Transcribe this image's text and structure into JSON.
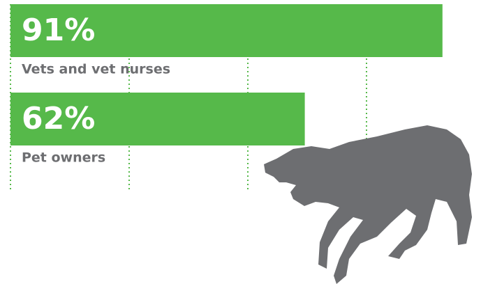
{
  "chart_data": {
    "type": "bar",
    "orientation": "horizontal",
    "categories": [
      "Vets and vet nurses",
      "Pet owners"
    ],
    "values": [
      91,
      62
    ],
    "value_labels": [
      "91%",
      "62%"
    ],
    "color": "#56b94a",
    "xlim": [
      0,
      100
    ],
    "xticks": [
      0,
      25,
      50,
      75
    ],
    "grid": true
  }
}
